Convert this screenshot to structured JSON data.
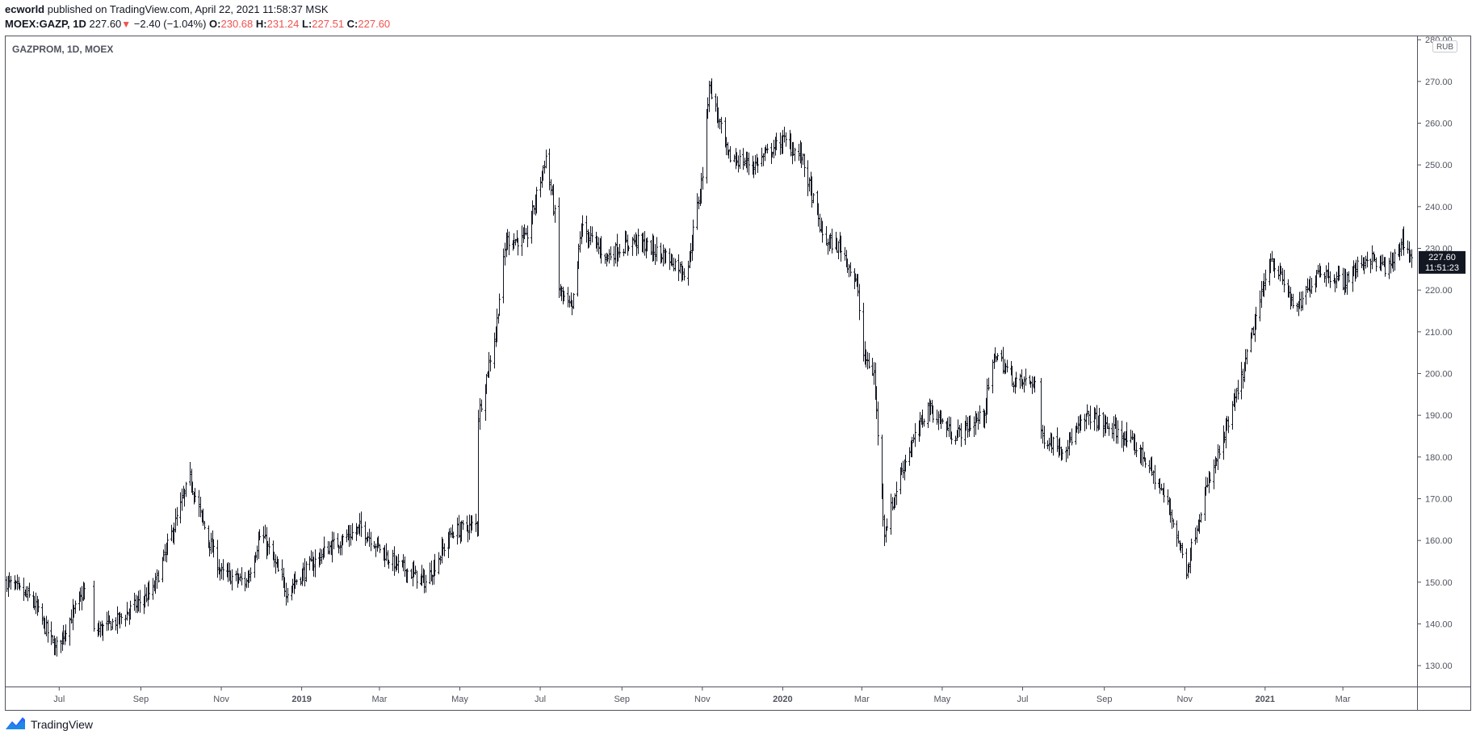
{
  "header": {
    "author": "ecworld",
    "published_text": "published on TradingView.com, April 22, 2021 11:58:37 MSK",
    "symbol": "MOEX:GAZP, 1D",
    "last": "227.60",
    "down_arrow": "▼",
    "change": "−2.40 (−1.04%)",
    "o_label": "O:",
    "o_value": "230.68",
    "h_label": "H:",
    "h_value": "231.24",
    "l_label": "L:",
    "l_value": "227.51",
    "c_label": "C:",
    "c_value": "227.60"
  },
  "footer": {
    "brand": "TradingView",
    "logo_icon": "tradingview-logo-icon"
  },
  "colors": {
    "bar": "#131722",
    "down": "#ef5350",
    "frame": "#50535e",
    "axis_text": "#50535e"
  },
  "chart_data": {
    "type": "bar",
    "subtype": "ohlc",
    "title": "GAZPROM, 1D, MOEX",
    "currency": "RUB",
    "last_price_label": "227.60",
    "countdown_label": "11:51:23",
    "ylim": [
      125,
      281
    ],
    "y_ticks": [
      130,
      140,
      150,
      160,
      170,
      180,
      190,
      200,
      210,
      220,
      230,
      240,
      250,
      260,
      270,
      280
    ],
    "y_tick_labels": [
      "130.00",
      "140.00",
      "150.00",
      "160.00",
      "170.00",
      "180.00",
      "190.00",
      "200.00",
      "210.00",
      "220.00",
      "230.00",
      "240.00",
      "250.00",
      "260.00",
      "270.00",
      "280.00"
    ],
    "x_range": [
      "2018-05-22",
      "2021-04-22"
    ],
    "x_ticks": [
      {
        "label": "Jul",
        "date": "2018-07-01",
        "bold": false
      },
      {
        "label": "Sep",
        "date": "2018-09-01",
        "bold": false
      },
      {
        "label": "Nov",
        "date": "2018-11-01",
        "bold": false
      },
      {
        "label": "2019",
        "date": "2019-01-01",
        "bold": true
      },
      {
        "label": "Mar",
        "date": "2019-03-01",
        "bold": false
      },
      {
        "label": "May",
        "date": "2019-05-01",
        "bold": false
      },
      {
        "label": "Jul",
        "date": "2019-07-01",
        "bold": false
      },
      {
        "label": "Sep",
        "date": "2019-09-01",
        "bold": false
      },
      {
        "label": "Nov",
        "date": "2019-11-01",
        "bold": false
      },
      {
        "label": "2020",
        "date": "2020-01-01",
        "bold": true
      },
      {
        "label": "Mar",
        "date": "2020-03-01",
        "bold": false
      },
      {
        "label": "May",
        "date": "2020-05-01",
        "bold": false
      },
      {
        "label": "Jul",
        "date": "2020-07-01",
        "bold": false
      },
      {
        "label": "Sep",
        "date": "2020-09-01",
        "bold": false
      },
      {
        "label": "Nov",
        "date": "2020-11-01",
        "bold": false
      },
      {
        "label": "2021",
        "date": "2021-01-01",
        "bold": true
      },
      {
        "label": "Mar",
        "date": "2021-03-01",
        "bold": false
      }
    ],
    "close_path": [
      [
        "2018-05-22",
        150
      ],
      [
        "2018-06-10",
        146
      ],
      [
        "2018-06-28",
        134
      ],
      [
        "2018-07-20",
        148
      ],
      [
        "2018-07-27",
        138
      ],
      [
        "2018-08-15",
        141
      ],
      [
        "2018-09-10",
        148
      ],
      [
        "2018-10-08",
        175
      ],
      [
        "2018-10-20",
        162
      ],
      [
        "2018-11-01",
        152
      ],
      [
        "2018-11-20",
        150
      ],
      [
        "2018-12-01",
        162
      ],
      [
        "2018-12-20",
        148
      ],
      [
        "2019-01-20",
        158
      ],
      [
        "2019-02-15",
        163
      ],
      [
        "2019-03-10",
        155
      ],
      [
        "2019-04-05",
        150
      ],
      [
        "2019-04-25",
        162
      ],
      [
        "2019-05-14",
        164
      ],
      [
        "2019-05-15",
        190
      ],
      [
        "2019-05-28",
        210
      ],
      [
        "2019-06-05",
        232
      ],
      [
        "2019-06-20",
        232
      ],
      [
        "2019-07-05",
        252
      ],
      [
        "2019-07-12",
        238
      ],
      [
        "2019-07-15",
        220
      ],
      [
        "2019-07-25",
        215
      ],
      [
        "2019-08-01",
        235
      ],
      [
        "2019-08-20",
        228
      ],
      [
        "2019-09-10",
        232
      ],
      [
        "2019-10-05",
        228
      ],
      [
        "2019-10-20",
        224
      ],
      [
        "2019-11-01",
        248
      ],
      [
        "2019-11-06",
        270
      ],
      [
        "2019-11-20",
        252
      ],
      [
        "2019-12-10",
        250
      ],
      [
        "2020-01-01",
        256
      ],
      [
        "2020-01-15",
        252
      ],
      [
        "2020-02-01",
        232
      ],
      [
        "2020-02-15",
        230
      ],
      [
        "2020-02-27",
        220
      ],
      [
        "2020-03-01",
        205
      ],
      [
        "2020-03-10",
        200
      ],
      [
        "2020-03-18",
        162
      ],
      [
        "2020-04-01",
        178
      ],
      [
        "2020-04-20",
        192
      ],
      [
        "2020-05-10",
        185
      ],
      [
        "2020-06-01",
        190
      ],
      [
        "2020-06-10",
        205
      ],
      [
        "2020-06-25",
        198
      ],
      [
        "2020-07-10",
        198
      ],
      [
        "2020-07-15",
        185
      ],
      [
        "2020-08-01",
        182
      ],
      [
        "2020-08-20",
        190
      ],
      [
        "2020-09-15",
        185
      ],
      [
        "2020-10-01",
        180
      ],
      [
        "2020-10-20",
        168
      ],
      [
        "2020-11-02",
        153
      ],
      [
        "2020-11-15",
        170
      ],
      [
        "2020-12-01",
        185
      ],
      [
        "2020-12-15",
        200
      ],
      [
        "2021-01-05",
        228
      ],
      [
        "2021-01-25",
        215
      ],
      [
        "2021-02-10",
        225
      ],
      [
        "2021-03-01",
        222
      ],
      [
        "2021-03-20",
        228
      ],
      [
        "2021-04-05",
        225
      ],
      [
        "2021-04-15",
        232
      ],
      [
        "2021-04-22",
        227.6
      ]
    ],
    "gaps": [
      [
        "2018-07-21",
        "2018-07-26"
      ],
      [
        "2020-07-11",
        "2020-07-14"
      ]
    ],
    "grid": false,
    "legend": "none"
  }
}
